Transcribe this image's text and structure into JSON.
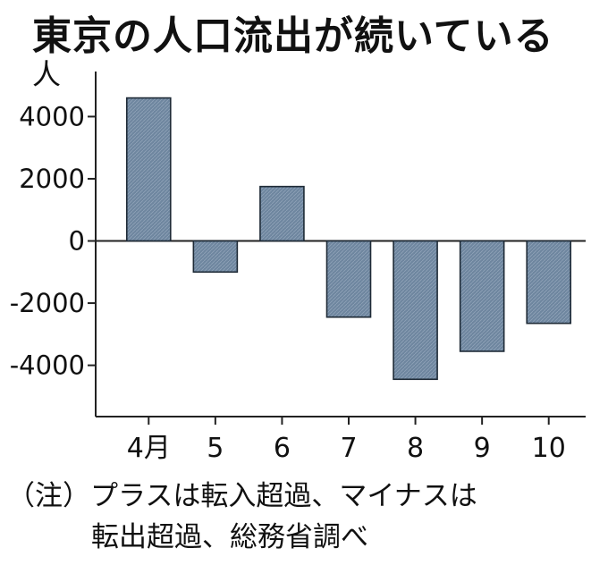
{
  "title": "東京の人口流出が続いている",
  "unit_label": "人",
  "note_lines": [
    "（注）プラスは転入超過、マイナスは",
    "転出超過、総務省調べ"
  ],
  "colors": {
    "bar_fill": "#6e869f",
    "bar_stroke": "#1e2a36",
    "axis": "#222222",
    "text": "#111111"
  },
  "chart_data": {
    "type": "bar",
    "categories": [
      "4月",
      "5",
      "6",
      "7",
      "8",
      "9",
      "10"
    ],
    "values": [
      4600,
      -1000,
      1750,
      -2450,
      -4450,
      -3550,
      -2650
    ],
    "yticks": [
      4000,
      2000,
      0,
      -2000,
      -4000
    ],
    "ylim": [
      -5650,
      5450
    ],
    "ylabel": "人",
    "grid": false,
    "legend": "none"
  }
}
